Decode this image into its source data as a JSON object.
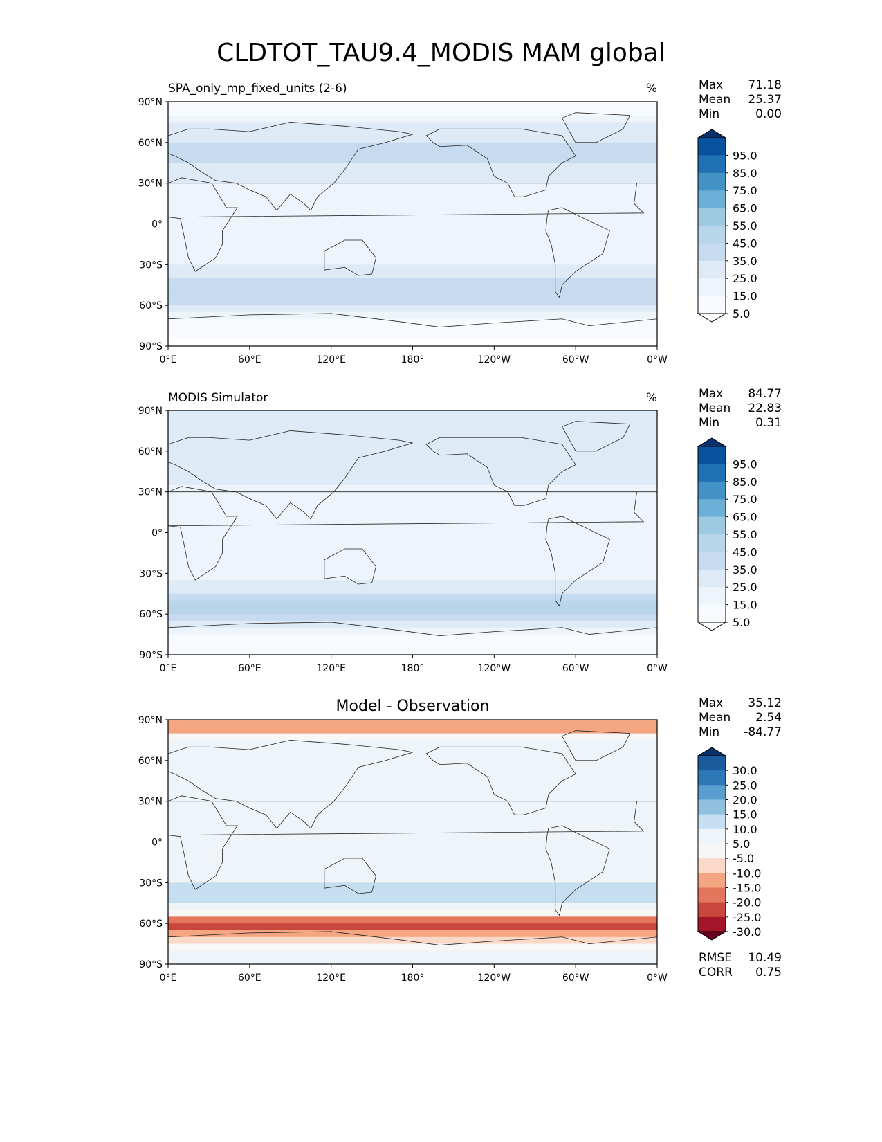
{
  "figure": {
    "title": "CLDTOT_TAU9.4_MODIS MAM global"
  },
  "axes": {
    "lat_ticks": [
      "90°N",
      "60°N",
      "30°N",
      "0°",
      "30°S",
      "60°S",
      "90°S"
    ],
    "lon_ticks": [
      "0°E",
      "60°E",
      "120°E",
      "180°",
      "120°W",
      "60°W",
      "0°W"
    ]
  },
  "chart_data": [
    {
      "type": "heatmap",
      "title": "SPA_only_mp_fixed_units (2-6)",
      "units": "%",
      "stats": [
        {
          "label": "Max",
          "value": "71.18"
        },
        {
          "label": "Mean",
          "value": "25.37"
        },
        {
          "label": "Min",
          "value": "0.00"
        }
      ],
      "colorbar_ticks": [
        "95.0",
        "85.0",
        "75.0",
        "65.0",
        "55.0",
        "45.0",
        "35.0",
        "25.0",
        "15.0",
        "5.0"
      ],
      "colorbar_colors": [
        "#08306b",
        "#08519c",
        "#2171b5",
        "#4292c6",
        "#6baed6",
        "#9ecae1",
        "#b8d5ea",
        "#c6dbef",
        "#deebf7",
        "#eef4fb",
        "#f7fbff",
        "#ffffff"
      ],
      "zonal_profile": {
        "lat": [
          85,
          70,
          55,
          40,
          25,
          10,
          0,
          -10,
          -25,
          -40,
          -50,
          -60,
          -75,
          -85
        ],
        "values": [
          12,
          28,
          38,
          34,
          18,
          22,
          24,
          22,
          22,
          32,
          45,
          38,
          8,
          4
        ]
      }
    },
    {
      "type": "heatmap",
      "title": "MODIS Simulator",
      "units": "%",
      "stats": [
        {
          "label": "Max",
          "value": "84.77"
        },
        {
          "label": "Mean",
          "value": "22.83"
        },
        {
          "label": "Min",
          "value": "0.31"
        }
      ],
      "colorbar_ticks": [
        "95.0",
        "85.0",
        "75.0",
        "65.0",
        "55.0",
        "45.0",
        "35.0",
        "25.0",
        "15.0",
        "5.0"
      ],
      "colorbar_colors": [
        "#08306b",
        "#08519c",
        "#2171b5",
        "#4292c6",
        "#6baed6",
        "#9ecae1",
        "#b8d5ea",
        "#c6dbef",
        "#deebf7",
        "#eef4fb",
        "#f7fbff",
        "#ffffff"
      ],
      "zonal_profile": {
        "lat": [
          85,
          70,
          55,
          40,
          25,
          10,
          0,
          -10,
          -25,
          -40,
          -50,
          -60,
          -75,
          -85
        ],
        "values": [
          30,
          26,
          32,
          30,
          16,
          18,
          20,
          18,
          18,
          30,
          45,
          46,
          14,
          10
        ]
      }
    },
    {
      "type": "heatmap",
      "title": "Model - Observation",
      "units": "",
      "stats": [
        {
          "label": "Max",
          "value": "35.12"
        },
        {
          "label": "Mean",
          "value": "2.54"
        },
        {
          "label": "Min",
          "value": "-84.77"
        }
      ],
      "colorbar_ticks": [
        "30.0",
        "25.0",
        "20.0",
        "15.0",
        "10.0",
        "5.0",
        "-5.0",
        "-10.0",
        "-15.0",
        "-20.0",
        "-25.0",
        "-30.0"
      ],
      "colorbar_colors": [
        "#08306b",
        "#1c5a9e",
        "#2e78b8",
        "#5a9ed0",
        "#8fc1df",
        "#c6dff0",
        "#eef4f8",
        "#f7f7f7",
        "#fbd9c9",
        "#f4a582",
        "#e3765c",
        "#c9463d",
        "#a5152a",
        "#67001f"
      ],
      "zonal_profile": {
        "lat": [
          85,
          70,
          55,
          40,
          25,
          10,
          0,
          -10,
          -25,
          -40,
          -50,
          -60,
          -75,
          -85
        ],
        "values": [
          -20,
          2,
          4,
          4,
          2,
          3,
          3,
          4,
          4,
          6,
          3,
          -30,
          -8,
          -4
        ]
      },
      "footer_stats": [
        {
          "label": "RMSE",
          "value": "10.49"
        },
        {
          "label": "CORR",
          "value": "0.75"
        }
      ]
    }
  ]
}
